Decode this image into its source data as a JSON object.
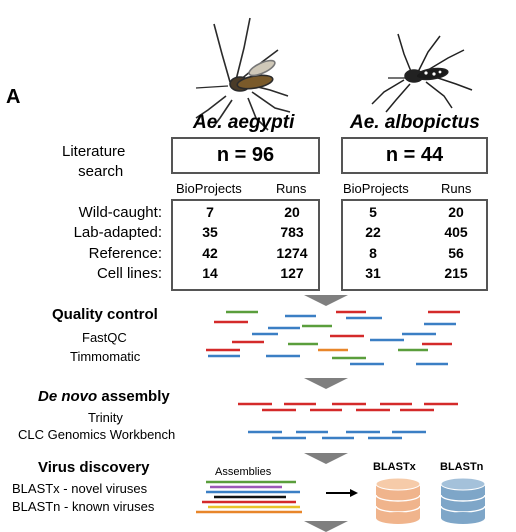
{
  "panel_label": "A",
  "species": [
    {
      "name": "Ae. aegypti",
      "n_label": "n = 96",
      "rows": [
        {
          "bio": "7",
          "runs": "20"
        },
        {
          "bio": "35",
          "runs": "783"
        },
        {
          "bio": "42",
          "runs": "1274"
        },
        {
          "bio": "14",
          "runs": "127"
        }
      ]
    },
    {
      "name": "Ae. albopictus",
      "n_label": "n = 44",
      "rows": [
        {
          "bio": "5",
          "runs": "20"
        },
        {
          "bio": "22",
          "runs": "405"
        },
        {
          "bio": "8",
          "runs": "56"
        },
        {
          "bio": "31",
          "runs": "215"
        }
      ]
    }
  ],
  "literature": {
    "line1": "Literature",
    "line2": "search"
  },
  "columns": {
    "bioprojects": "BioProjects",
    "runs": "Runs"
  },
  "row_labels": [
    "Wild-caught:",
    "Lab-adapted:",
    "Reference:",
    "Cell lines:"
  ],
  "steps": {
    "qc": {
      "title": "Quality control",
      "tools": [
        "FastQC",
        "Timmomatic"
      ]
    },
    "denovo": {
      "title_italic": "De novo",
      "title_rest": " assembly",
      "tools": [
        "Trinity",
        "CLC Genomics Workbench"
      ]
    },
    "virus": {
      "title": "Virus discovery",
      "tools": [
        "BLASTx - novel viruses",
        "BLASTn - known viruses"
      ]
    }
  },
  "assemblies_label": "Assemblies",
  "databases": [
    {
      "label": "BLASTx",
      "color": "#f0b48c"
    },
    {
      "label": "BLASTn",
      "color": "#7ea6c8"
    }
  ],
  "colors": {
    "red": "#d42a2a",
    "blue": "#3b7fc4",
    "green": "#5a9e3c",
    "orange": "#e8862a",
    "arrow": "#7f7f7f"
  }
}
